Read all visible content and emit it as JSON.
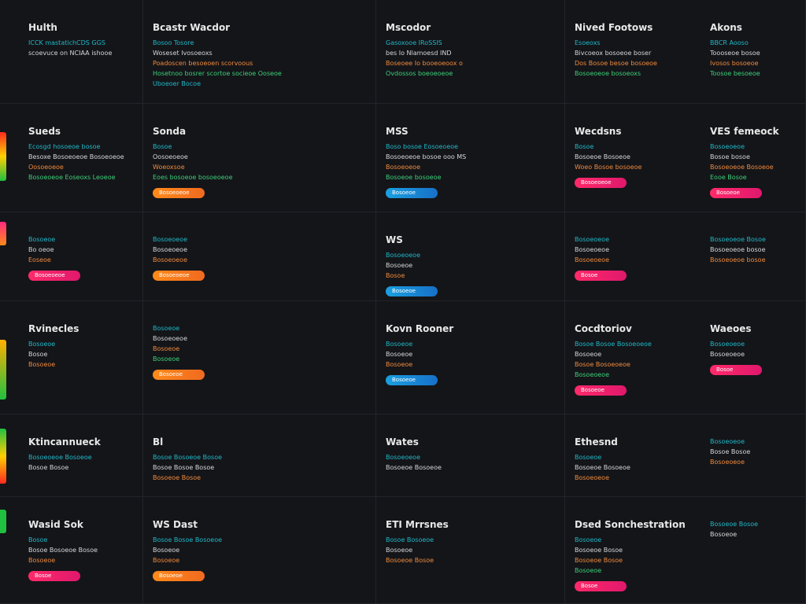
{
  "rows": [
    {
      "cells": [
        {
          "title": "Hulth",
          "lines": [
            "ICCK mastatichCDS GGS",
            "scoevuce on NCIAA ishooe"
          ]
        },
        {
          "title": "Bcastr Wacdor",
          "lines": [
            "Bosoo Tosore",
            "Woseset Ivosoeoxs",
            "Poadoscen besoeoen scorvoous",
            "Hosetnoo bosrer scortoe socieoe Ooseoe",
            "Uboeoer Bocoe"
          ]
        },
        {
          "title": "Mscodor",
          "lines": [
            "Gasoxooe IRoSSIS",
            "bes Io Nlamoesd IND",
            "Boseoee Io booeoeoox o",
            "Ovdossos boeoeoeoe"
          ]
        },
        {
          "title": "Nived Footows",
          "lines": [
            "Esoeoxs",
            "Bivcoeox bosoeoe boser",
            "Dos Bosoe besoe bosoeoe",
            "Bosoeoeoe bosoeoxs"
          ]
        },
        {
          "title": "Akons",
          "lines": [
            "BBCR Aooso",
            "Toooseoe bosoe",
            "Ivosos bosoeoe",
            "Toosoe besoeoe"
          ]
        }
      ]
    },
    {
      "cells": [
        {
          "title": "Sueds",
          "lines": [
            "Ecosgd hosoeoe bosoe",
            "Besoxe Bosoeoeoe Bosoeoeoe",
            "Oosoeoeoe",
            "Bosoeoeoe Eoseoxs Leoeoe"
          ]
        },
        {
          "title": "Sonda",
          "lines": [
            "Bosoe",
            "Oosoeoeoe",
            "Woeoxsoe",
            "Eoes bosoeoe bosoeoeoe"
          ],
          "pill": "Bosoeoeoe"
        },
        {
          "title": "MSS",
          "lines": [
            "Boso bosoe Eosoeoeoe",
            "Bosoeoeoe bosoe ooo MS",
            "Bosoeoeoe",
            "Bosoeoe bosoeoe"
          ],
          "pill": "Bosoeoe"
        },
        {
          "title": "Wecdsns",
          "lines": [
            "Bosoe",
            "Bosoeoe Bosoeoe",
            "Woeo Bosoe bosoeoe"
          ],
          "pill": "Bosoeoeoe"
        },
        {
          "title": "VES femeock",
          "lines": [
            "Bosoeoeoe",
            "Bosoe bosoe",
            "Bosoeoeoe Bosoeoe",
            "Eooe Bosoe"
          ],
          "pill": "Bosoeoe"
        }
      ]
    },
    {
      "cells": [
        {
          "lines": [
            "Bosoeoe",
            "Bo oeoe",
            "Eoseoe"
          ],
          "pill": "Bosoeoeoe"
        },
        {
          "lines": [
            "Bosoeoeoe",
            "Bosoeoeoe",
            "Bosoeoeoe"
          ],
          "pill": "Bosoeoeoe"
        },
        {
          "title": "WS",
          "lines": [
            "Bosoeoeoe",
            "Bosoeoe",
            "Bosoe"
          ],
          "pill": "Bosoeoe"
        },
        {
          "lines": [
            "Bosoeoeoe",
            "Bosoeoeoe",
            "Bosoeoeoe"
          ],
          "pill": "Bosoe"
        },
        {
          "lines": [
            "Bosoeoeoe Bosoe",
            "Bosoeoeoe bosoe",
            "Bosoeoeoe bosoe"
          ]
        }
      ]
    },
    {
      "cells": [
        {
          "title": "Rvinecles",
          "lines": [
            "Bosoeoe",
            "Bosoe",
            "Bosoeoe"
          ]
        },
        {
          "lines": [
            "Bosoeoe",
            "Bosoeoeoe",
            "Bosoeoe",
            "Bosoeoe"
          ],
          "pill": "Bosoeoe"
        },
        {
          "title": "Kovn Rooner",
          "lines": [
            "Bosoeoe",
            "Bosoeoe",
            "Bosoeoe"
          ],
          "pill": "Bosoeoe"
        },
        {
          "title": "Cocdtoriov",
          "lines": [
            "Bosoe Bosoe Bosoeoeoe",
            "Bosoeoe",
            "Bosoe Bosoeoeoe",
            "Bosoeoeoe"
          ],
          "pill": "Bosoeoe"
        },
        {
          "title": "Waeoes",
          "lines": [
            "Bosoeoeoe",
            "Bosoeoeoe"
          ],
          "pill": "Bosoe"
        }
      ]
    },
    {
      "cells": [
        {
          "title": "Ktincannueck",
          "lines": [
            "Bosoeoeoe Bosoeoe",
            "Bosoe Bosoe"
          ]
        },
        {
          "title": "Bl",
          "lines": [
            "Bosoe Bosoeoe Bosoe",
            "Bosoe Bosoe Bosoe",
            "Bosoeoe Bosoe"
          ]
        },
        {
          "title": "Wates",
          "lines": [
            "Bosoeoeoe",
            "Bosoeoe Bosoeoe"
          ]
        },
        {
          "title": "Ethesnd",
          "lines": [
            "Bosoeoe",
            "Bosoeoe Bosoeoe",
            "Bosoeoeoe"
          ]
        },
        {
          "lines": [
            "Bosoeoeoe",
            "Bosoe Bosoe",
            "Bosoeoeoe"
          ]
        }
      ]
    },
    {
      "cells": [
        {
          "title": "Wasid Sok",
          "lines": [
            "Bosoe",
            "Bosoe Bosoeoe Bosoe",
            "Bosoeoe"
          ],
          "pill": "Bosoe"
        },
        {
          "title": "WS Dast",
          "lines": [
            "Bosoe Bosoe Bosoeoe",
            "Bosoeoe",
            "Bosoeoe"
          ],
          "pill": "Bosoeoe"
        },
        {
          "title": "ETI Mrrsnes",
          "lines": [
            "Bosoe Bosoeoe",
            "Bosoeoe",
            "Bosoeoe Bosoe"
          ]
        },
        {
          "title": "Dsed Sonchestration",
          "lines": [
            "Bosoeoe",
            "Bosoeoe Bosoe",
            "Bosoeoe Bosoe",
            "Bosoeoe"
          ],
          "pill": "Bosoe"
        },
        {
          "lines": [
            "Bosoeoe Bosoe",
            "Bosoeoe"
          ]
        }
      ]
    }
  ]
}
